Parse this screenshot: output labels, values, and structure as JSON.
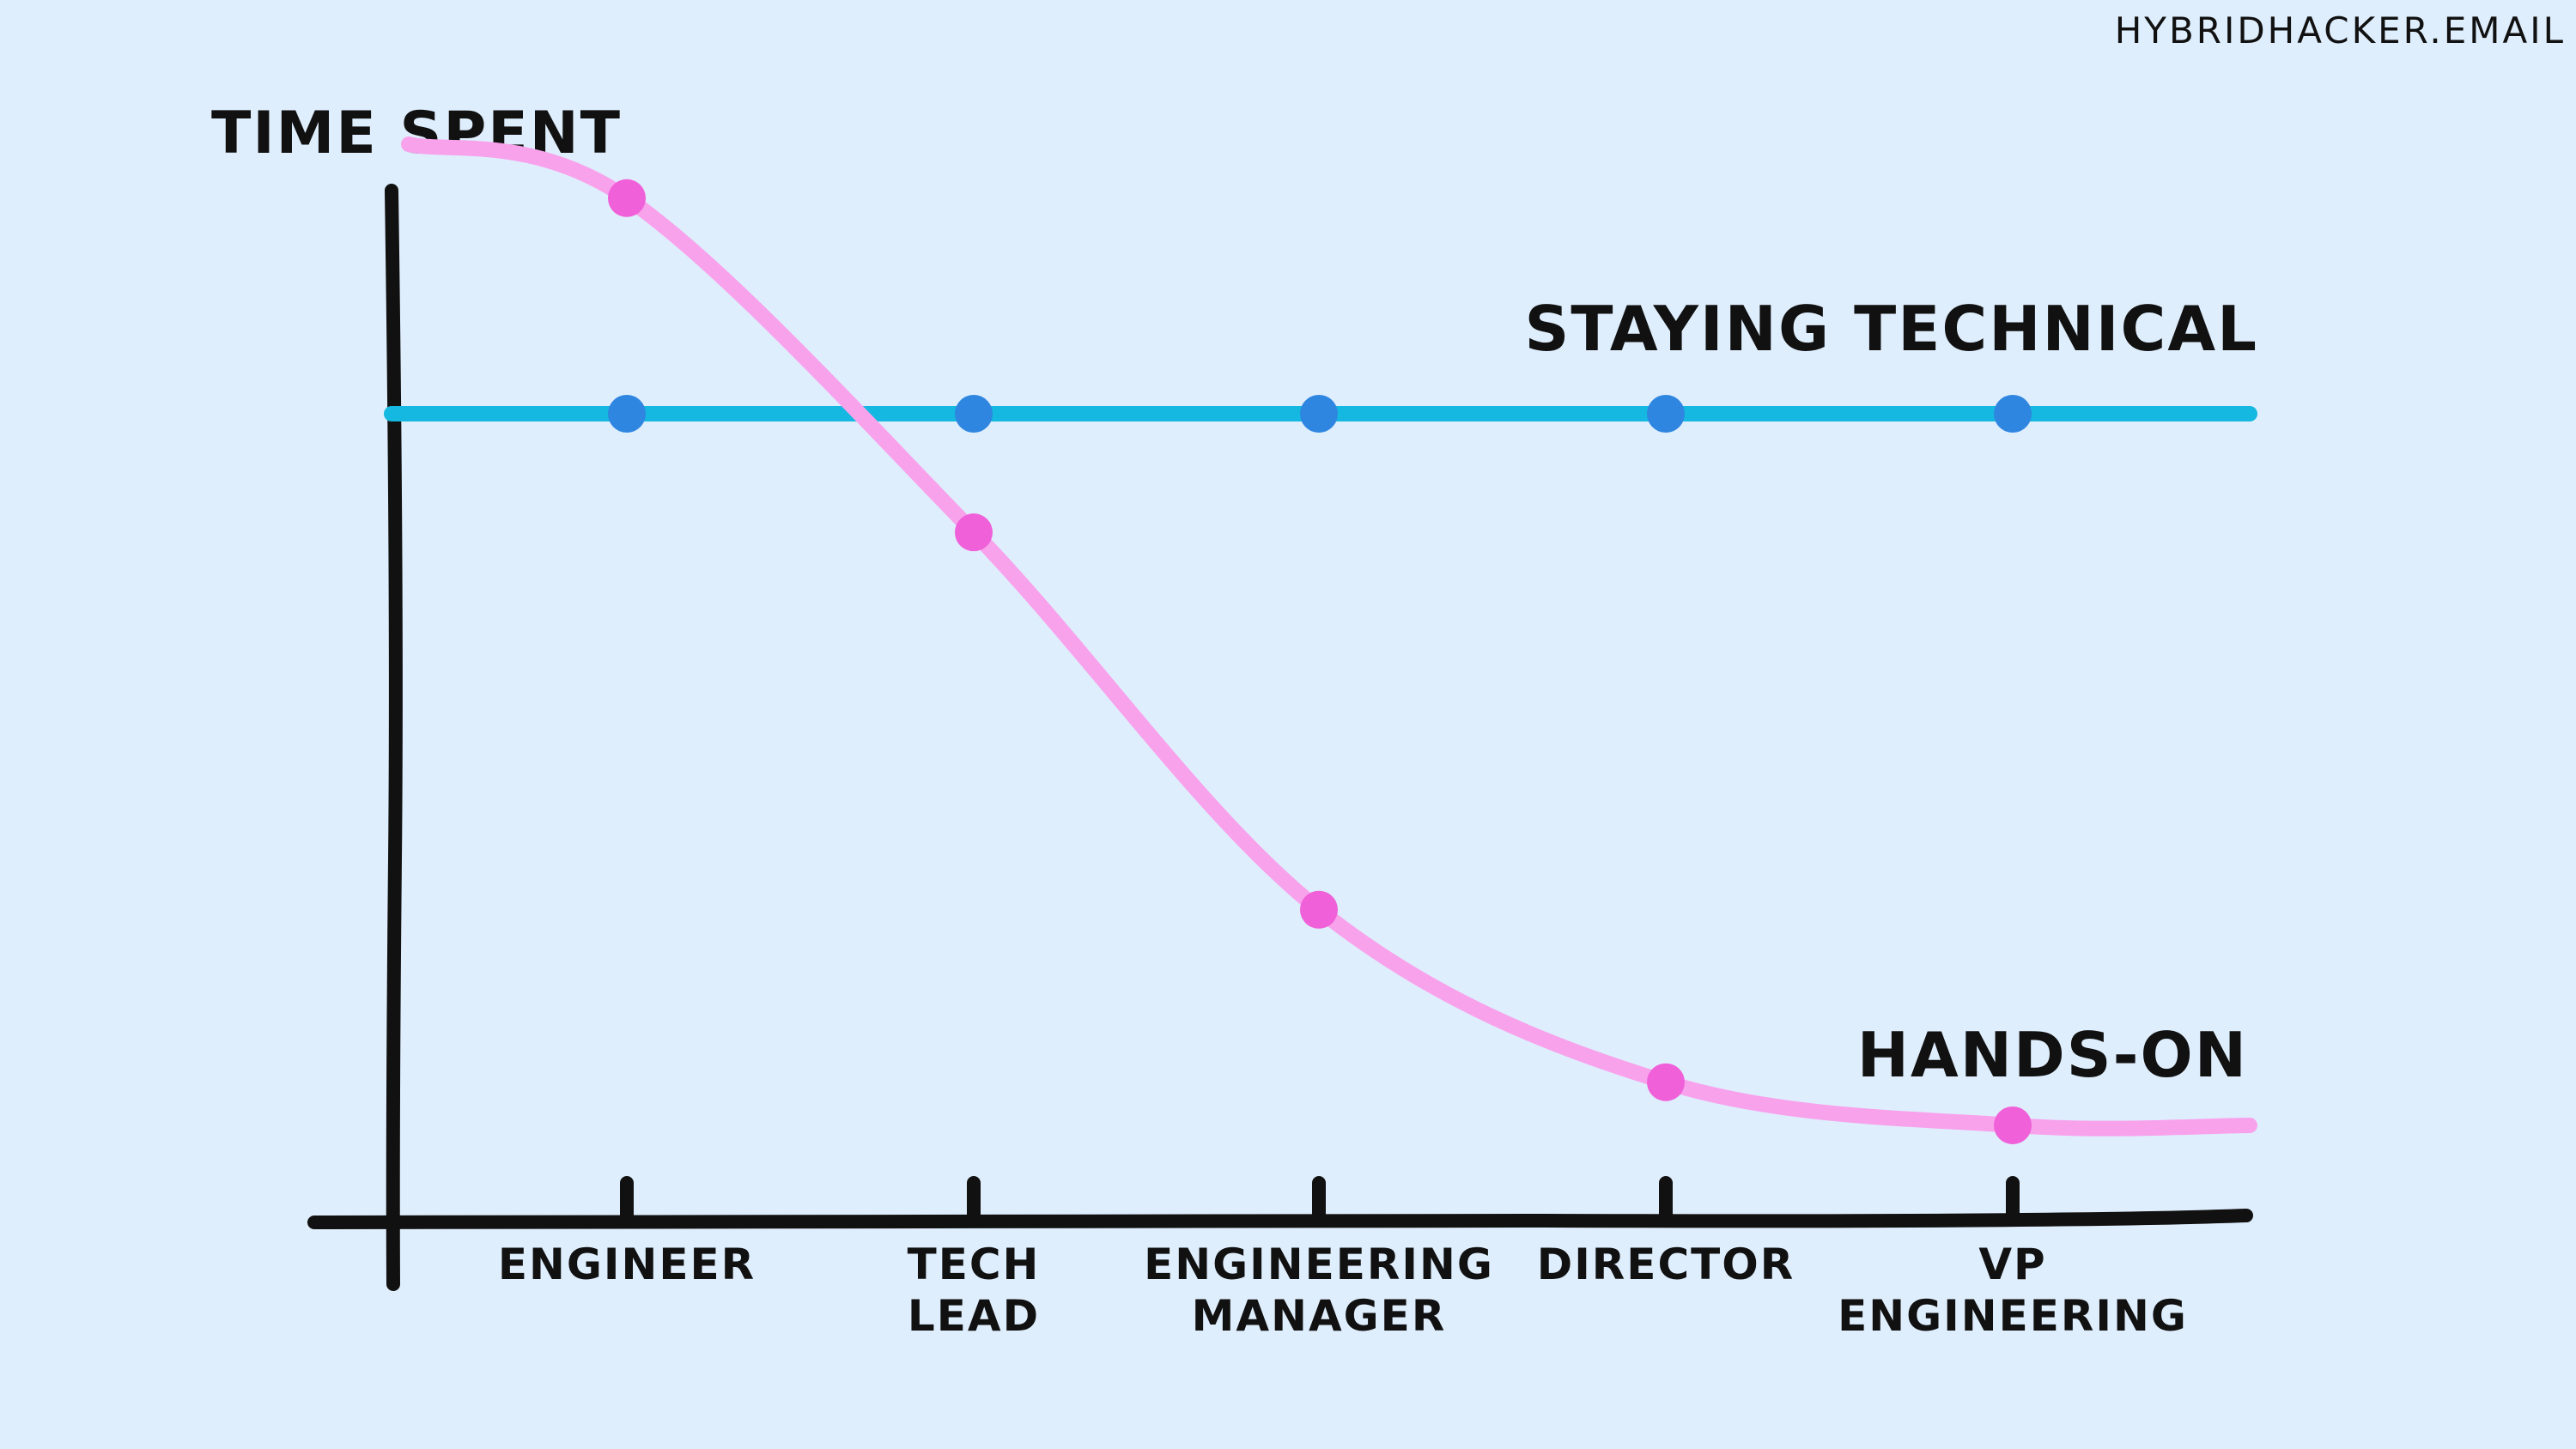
{
  "watermark": "HYBRIDHACKER.EMAIL",
  "colors": {
    "background": "#dfeefd",
    "axis": "#111111",
    "technical_line": "#14b8e0",
    "technical_marker": "#2f86e0",
    "handson_line": "#f8a2ec",
    "handson_marker": "#f060d8"
  },
  "chart_data": {
    "type": "line",
    "ylabel": "TIME SPENT",
    "xlabel": "",
    "categories": [
      [
        "ENGINEER"
      ],
      [
        "TECH",
        "LEAD"
      ],
      [
        "ENGINEERING",
        "MANAGER"
      ],
      [
        "DIRECTOR"
      ],
      [
        "VP",
        "ENGINEERING"
      ]
    ],
    "ylim": [
      0,
      100
    ],
    "grid": false,
    "series": [
      {
        "name": "STAYING TECHNICAL",
        "values": [
          75,
          75,
          75,
          75,
          75
        ]
      },
      {
        "name": "HANDS-ON",
        "values": [
          95,
          64,
          29,
          13,
          9
        ]
      }
    ]
  }
}
